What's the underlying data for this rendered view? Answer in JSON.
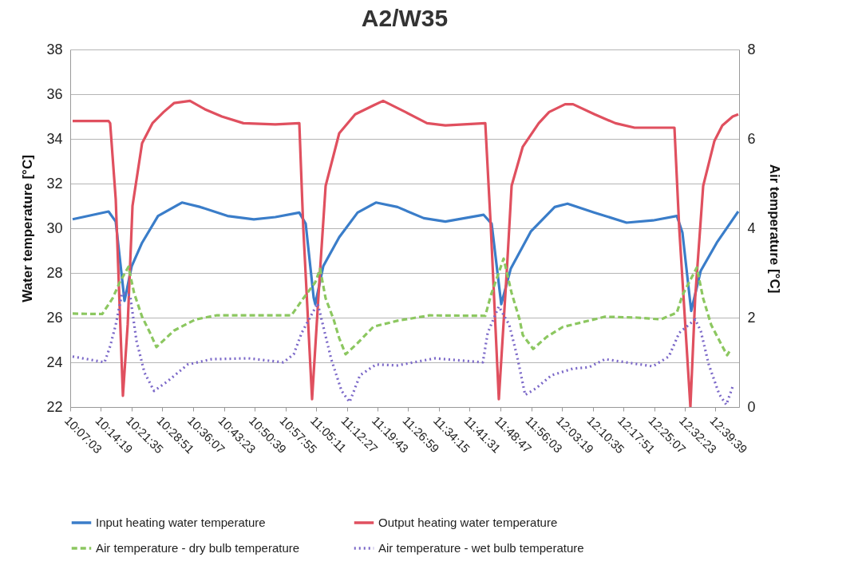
{
  "chart_data": {
    "type": "line",
    "title": "A2/W35",
    "ylabel": "Water temperature [°C]",
    "y2label": "Air temperature [°C]",
    "xlim": [
      10.1175,
      12.7536
    ],
    "xticks": [
      {
        "value": 10.1175,
        "label": "10:07:03"
      },
      {
        "value": 10.2386,
        "label": "10:14:19"
      },
      {
        "value": 10.3597,
        "label": "10:21:35"
      },
      {
        "value": 10.4808,
        "label": "10:28:51"
      },
      {
        "value": 10.6019,
        "label": "10:36:07"
      },
      {
        "value": 10.7231,
        "label": "10:43:23"
      },
      {
        "value": 10.8442,
        "label": "10:50:39"
      },
      {
        "value": 10.9653,
        "label": "10:57:55"
      },
      {
        "value": 11.0864,
        "label": "11:05:11"
      },
      {
        "value": 11.2075,
        "label": "11:12:27"
      },
      {
        "value": 11.3286,
        "label": "11:19:43"
      },
      {
        "value": 11.4497,
        "label": "11:26:59"
      },
      {
        "value": 11.5708,
        "label": "11:34:15"
      },
      {
        "value": 11.6919,
        "label": "11:41:31"
      },
      {
        "value": 11.8131,
        "label": "11:48:47"
      },
      {
        "value": 11.9342,
        "label": "11:56:03"
      },
      {
        "value": 12.0553,
        "label": "12:03:19"
      },
      {
        "value": 12.1764,
        "label": "12:10:35"
      },
      {
        "value": 12.2975,
        "label": "12:17:51"
      },
      {
        "value": 12.4186,
        "label": "12:25:07"
      },
      {
        "value": 12.5397,
        "label": "12:32:23"
      },
      {
        "value": 12.6608,
        "label": "12:39:39"
      }
    ],
    "ylim": [
      22,
      38
    ],
    "yticks": [
      22,
      24,
      26,
      28,
      30,
      32,
      34,
      36,
      38
    ],
    "y2lim": [
      0,
      8
    ],
    "y2ticks": [
      0,
      2,
      4,
      6,
      8
    ],
    "grid": "y",
    "legend": "bottom",
    "marker": "none",
    "series": [
      {
        "name": "Input heating water temperature",
        "color": "#3a7dc9",
        "line_style": "solid",
        "axis": "y",
        "x": [
          10.1269,
          10.2685,
          10.2968,
          10.3314,
          10.3597,
          10.4006,
          10.4635,
          10.5579,
          10.6302,
          10.7372,
          10.841,
          10.9259,
          11.0203,
          11.0455,
          11.0769,
          11.0832,
          11.1147,
          11.1776,
          11.25,
          11.3223,
          11.4072,
          11.511,
          11.596,
          11.747,
          11.7784,
          11.8162,
          11.8539,
          11.9326,
          12.0269,
          12.0773,
          12.1842,
          12.31,
          12.4139,
          12.5082,
          12.5303,
          12.5648,
          12.6026,
          12.6655,
          12.7504
        ],
        "values": [
          30.4,
          30.75,
          30.3,
          26.75,
          28.3,
          29.35,
          30.55,
          31.15,
          30.95,
          30.55,
          30.4,
          30.5,
          30.7,
          30.2,
          26.9,
          26.6,
          28.3,
          29.6,
          30.7,
          31.15,
          30.95,
          30.45,
          30.3,
          30.6,
          30.2,
          26.6,
          28.2,
          29.85,
          30.95,
          31.1,
          30.7,
          30.25,
          30.35,
          30.55,
          29.8,
          26.3,
          28.1,
          29.35,
          30.75
        ]
      },
      {
        "name": "Output heating water temperature",
        "color": "#e0505f",
        "line_style": "solid",
        "axis": "y",
        "x": [
          10.1269,
          10.2685,
          10.2748,
          10.2968,
          10.3251,
          10.344,
          10.3629,
          10.4006,
          10.4415,
          10.4855,
          10.5264,
          10.5894,
          10.6523,
          10.7152,
          10.8001,
          10.9259,
          11.0203,
          11.036,
          11.0706,
          11.1021,
          11.1241,
          11.1776,
          11.2405,
          11.3129,
          11.3506,
          11.4387,
          11.5236,
          11.596,
          11.7533,
          11.7753,
          11.8067,
          11.8382,
          11.8571,
          11.9011,
          11.964,
          12.0049,
          12.0678,
          12.0993,
          12.1842,
          12.266,
          12.3415,
          12.4988,
          12.5177,
          12.5617,
          12.5806,
          12.6121,
          12.6561,
          12.6875,
          12.7284,
          12.7504
        ],
        "values": [
          34.8,
          34.8,
          34.7,
          31.3,
          22.5,
          25.7,
          31.0,
          33.8,
          34.7,
          35.2,
          35.6,
          35.7,
          35.3,
          35.0,
          34.7,
          34.65,
          34.7,
          30.0,
          22.35,
          28.1,
          31.9,
          34.25,
          35.1,
          35.5,
          35.7,
          35.2,
          34.7,
          34.6,
          34.7,
          30.0,
          22.35,
          28.1,
          31.9,
          33.65,
          34.7,
          35.2,
          35.55,
          35.55,
          35.1,
          34.7,
          34.5,
          34.5,
          30.0,
          22.0,
          26.9,
          31.9,
          33.9,
          34.6,
          35.0,
          35.1
        ]
      },
      {
        "name": "Air temperature - dry bulb temperature",
        "color": "#8cc760",
        "line_style": "dashed",
        "axis": "y2",
        "x": [
          10.1269,
          10.2433,
          10.2842,
          10.3125,
          10.3471,
          10.3692,
          10.4006,
          10.4321,
          10.4572,
          10.5264,
          10.6114,
          10.6932,
          10.819,
          10.9889,
          11.036,
          11.0832,
          11.1021,
          11.1241,
          11.1556,
          11.1776,
          11.2028,
          11.25,
          11.3129,
          11.4072,
          11.5331,
          11.7533,
          11.7753,
          11.8256,
          11.8571,
          11.8885,
          11.9011,
          11.942,
          11.9955,
          12.0584,
          12.1307,
          12.2251,
          12.3509,
          12.4453,
          12.5082,
          12.5303,
          12.5869,
          12.6121,
          12.6435,
          12.6875,
          12.7064,
          12.7221
        ],
        "values": [
          2.09,
          2.08,
          2.43,
          2.79,
          3.14,
          2.55,
          2.02,
          1.66,
          1.34,
          1.71,
          1.96,
          2.05,
          2.05,
          2.05,
          2.43,
          2.79,
          3.09,
          2.43,
          1.96,
          1.54,
          1.18,
          1.43,
          1.8,
          1.93,
          2.05,
          2.04,
          2.5,
          3.32,
          2.55,
          1.96,
          1.61,
          1.3,
          1.57,
          1.79,
          1.89,
          2.02,
          2.0,
          1.96,
          2.11,
          2.5,
          3.12,
          2.43,
          1.84,
          1.36,
          1.16,
          1.3
        ]
      },
      {
        "name": "Air temperature - wet bulb temperature",
        "color": "#7b68c8",
        "line_style": "dotted",
        "axis": "y2",
        "x": [
          10.1269,
          10.2528,
          10.2748,
          10.2968,
          10.322,
          10.3534,
          10.3786,
          10.4101,
          10.4478,
          10.5044,
          10.5799,
          10.6743,
          10.819,
          10.9574,
          10.9983,
          11.0298,
          11.0927,
          11.1461,
          11.187,
          11.2185,
          11.2594,
          11.3223,
          11.4072,
          11.5551,
          11.7438,
          11.7627,
          11.8067,
          11.8476,
          11.8791,
          11.9105,
          11.9514,
          12.0144,
          12.0993,
          12.1622,
          12.2251,
          12.4139,
          12.4768,
          12.5177,
          12.5806,
          12.6026,
          12.6341,
          12.675,
          12.7033,
          12.7284
        ],
        "values": [
          1.13,
          1.0,
          1.36,
          1.84,
          2.55,
          2.5,
          1.48,
          0.77,
          0.36,
          0.59,
          0.95,
          1.07,
          1.09,
          1.0,
          1.18,
          1.66,
          2.32,
          1.07,
          0.36,
          0.11,
          0.71,
          0.95,
          0.93,
          1.09,
          1.0,
          1.66,
          2.25,
          1.84,
          1.13,
          0.27,
          0.41,
          0.71,
          0.86,
          0.89,
          1.07,
          0.91,
          1.13,
          1.66,
          1.96,
          1.7,
          0.95,
          0.29,
          0.05,
          0.46
        ]
      }
    ]
  }
}
